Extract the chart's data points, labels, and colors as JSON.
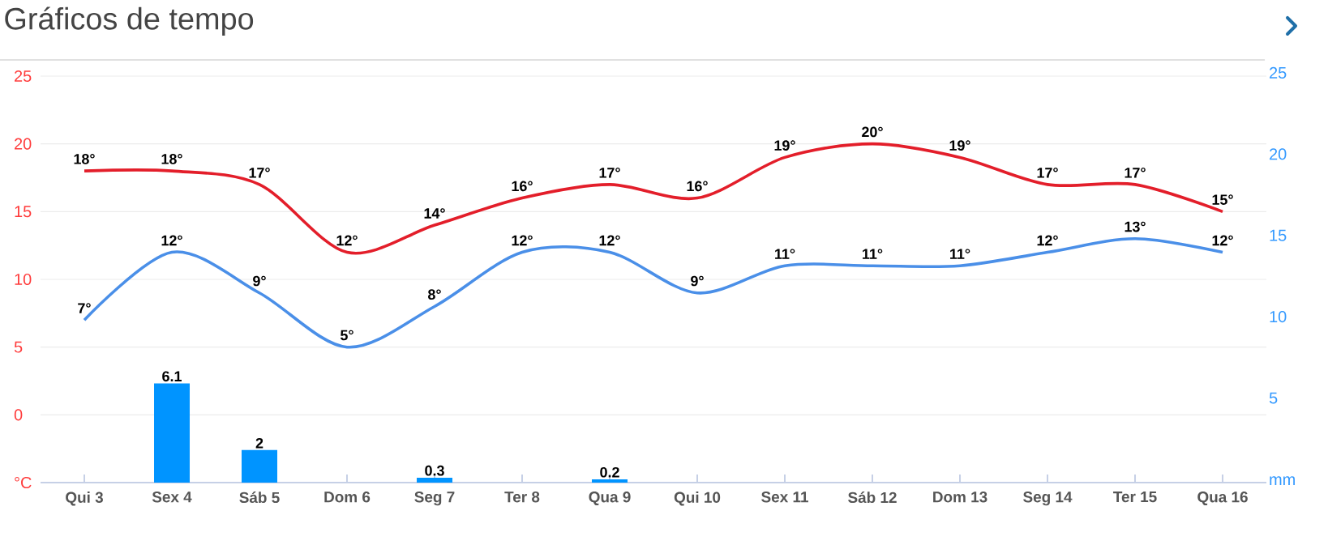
{
  "chart_data": {
    "type": "line",
    "title": "Gráficos de tempo",
    "categories": [
      "Qui 3",
      "Sex 4",
      "Sáb 5",
      "Dom 6",
      "Seg 7",
      "Ter 8",
      "Qua 9",
      "Qui 10",
      "Sex 11",
      "Sáb 12",
      "Dom 13",
      "Seg 14",
      "Ter 15",
      "Qua 16"
    ],
    "series": [
      {
        "color": "#e31e2a",
        "values": [
          18,
          18,
          17,
          12,
          14,
          16,
          17,
          16,
          19,
          20,
          19,
          17,
          17,
          15
        ],
        "value_labels": [
          "18°",
          "18°",
          "17°",
          "12°",
          "14°",
          "16°",
          "17°",
          "16°",
          "19°",
          "20°",
          "19°",
          "17°",
          "17°",
          "15°"
        ]
      },
      {
        "color": "#4a8fe8",
        "values": [
          7,
          12,
          9,
          5,
          8,
          12,
          12,
          9,
          11,
          11,
          11,
          12,
          13,
          12
        ],
        "value_labels": [
          "7°",
          "12°",
          "9°",
          "5°",
          "8°",
          "12°",
          "12°",
          "9°",
          "11°",
          "11°",
          "11°",
          "12°",
          "13°",
          "12°"
        ]
      },
      {
        "type": "bar",
        "axis": "y2",
        "color": "#0094ff",
        "values": [
          0,
          6.1,
          2,
          0,
          0.3,
          0,
          0.2,
          0,
          0,
          0,
          0,
          0,
          0,
          0
        ],
        "value_labels": [
          null,
          "6.1",
          "2",
          null,
          "0.3",
          null,
          "0.2",
          null,
          null,
          null,
          null,
          null,
          null,
          null
        ]
      }
    ],
    "ylim": [
      -5,
      25
    ],
    "yticks": [
      {
        "value": -5,
        "label": "°C"
      },
      0,
      5,
      10,
      15,
      20,
      25
    ],
    "y2lim": [
      0,
      25
    ],
    "y2ticks": [
      {
        "value": 0,
        "label": "mm"
      },
      5,
      10,
      15,
      20,
      25
    ],
    "grid": "y"
  }
}
